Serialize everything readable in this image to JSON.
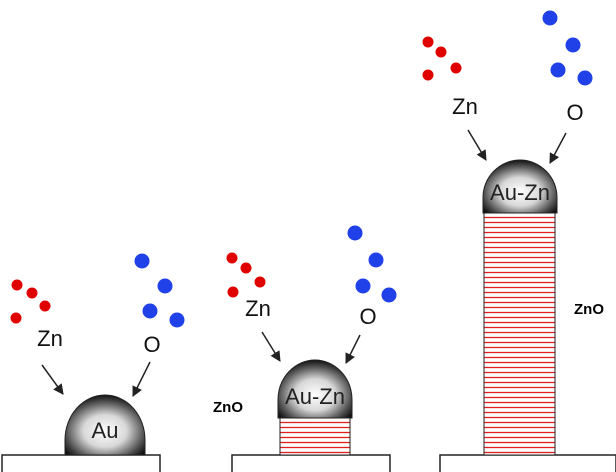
{
  "panels": [
    {
      "zn_label": "Zn",
      "o_label": "O",
      "catalyst_label": "Au"
    },
    {
      "zn_label": "Zn",
      "o_label": "O",
      "catalyst_label": "Au-Zn",
      "wire_label": "ZnO"
    },
    {
      "zn_label": "Zn",
      "o_label": "O",
      "catalyst_label": "Au-Zn",
      "wire_label": "ZnO"
    }
  ]
}
